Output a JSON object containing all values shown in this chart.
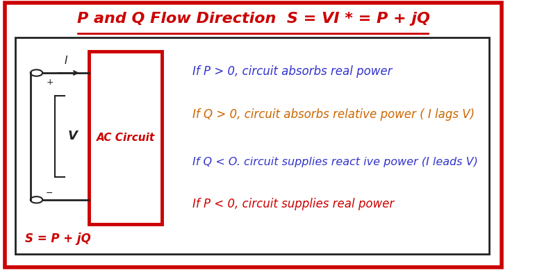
{
  "title": "P and Q Flow Direction  S = VI * = P + jQ",
  "title_color": "#cc0000",
  "title_fontsize": 16,
  "outer_border_color": "#cc0000",
  "outer_border_lw": 4,
  "inner_border_color": "#222222",
  "inner_border_lw": 2,
  "bg_color": "#ffffff",
  "line1_text": "If P > 0, circuit absorbs real power",
  "line1_color": "#3333cc",
  "line2_text": "If Q > 0, circuit absorbs relative power ( I lags V)",
  "line2_color": "#cc6600",
  "line3_text": "If Q < O. circuit supplies react ive power (I leads V)",
  "line3_color": "#3333cc",
  "line4_text": "If P < 0, circuit supplies real power",
  "line4_color": "#cc0000",
  "ac_circuit_label": "AC Circuit",
  "ac_circuit_label_color": "#cc0000",
  "ac_rect_border_color": "#cc0000",
  "s_label": "S = P + jQ",
  "s_label_color": "#cc0000",
  "current_label": "I",
  "voltage_label": "V",
  "label_color": "#222222"
}
